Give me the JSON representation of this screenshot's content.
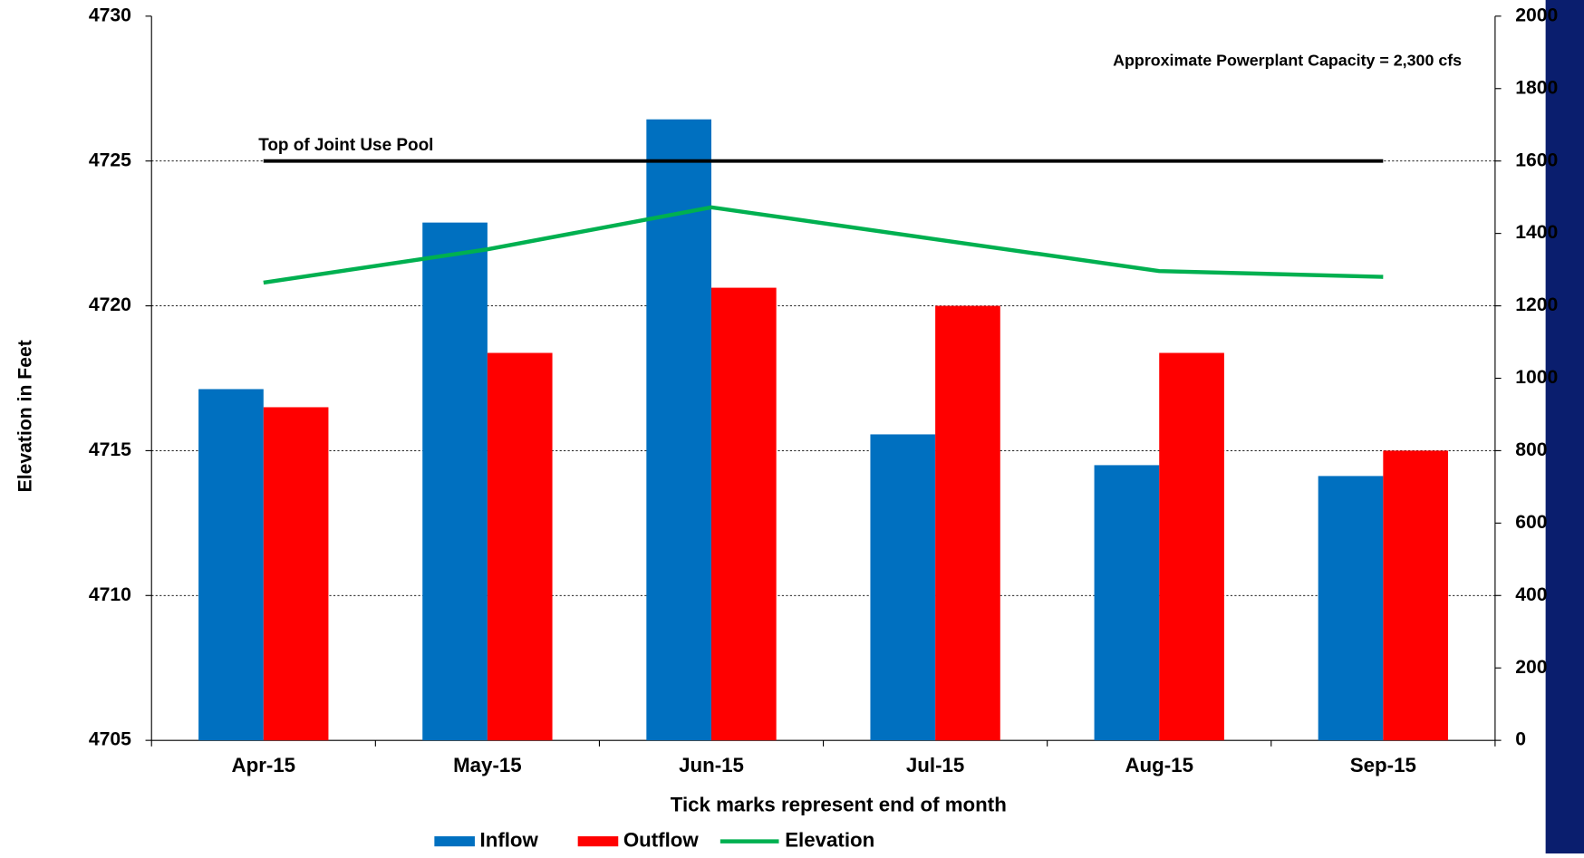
{
  "chart_data": {
    "type": "bar",
    "x_label": "Tick marks represent end of month",
    "y_label": "Elevation in Feet",
    "categories": [
      "Apr-15",
      "May-15",
      "Jun-15",
      "Jul-15",
      "Aug-15",
      "Sep-15"
    ],
    "series": [
      {
        "name": "Inflow",
        "type": "bar",
        "axis": "y2",
        "color": "#0070c0",
        "values": [
          970,
          1430,
          1715,
          845,
          760,
          730
        ]
      },
      {
        "name": "Outflow",
        "type": "bar",
        "axis": "y2",
        "color": "#ff0000",
        "values": [
          920,
          1070,
          1250,
          1200,
          1070,
          800
        ]
      },
      {
        "name": "Elevation",
        "type": "line",
        "color": "#00b050",
        "values": [
          4720.8,
          4721.95,
          4723.4,
          4722.3,
          4721.2,
          4721.0
        ]
      }
    ],
    "ylim": [
      4705,
      4730
    ],
    "yticks": [
      4705,
      4710,
      4715,
      4720,
      4725,
      4730
    ],
    "y2lim": [
      0,
      2000
    ],
    "y2ticks": [
      0,
      200,
      400,
      600,
      800,
      1000,
      1200,
      1400,
      1600,
      1800,
      2000
    ],
    "grid": true,
    "annotations": [
      {
        "text": "Top of Joint Use Pool",
        "value": 4725
      },
      {
        "text": "Approximate Powerplant Capacity = 2,300 cfs"
      }
    ]
  }
}
